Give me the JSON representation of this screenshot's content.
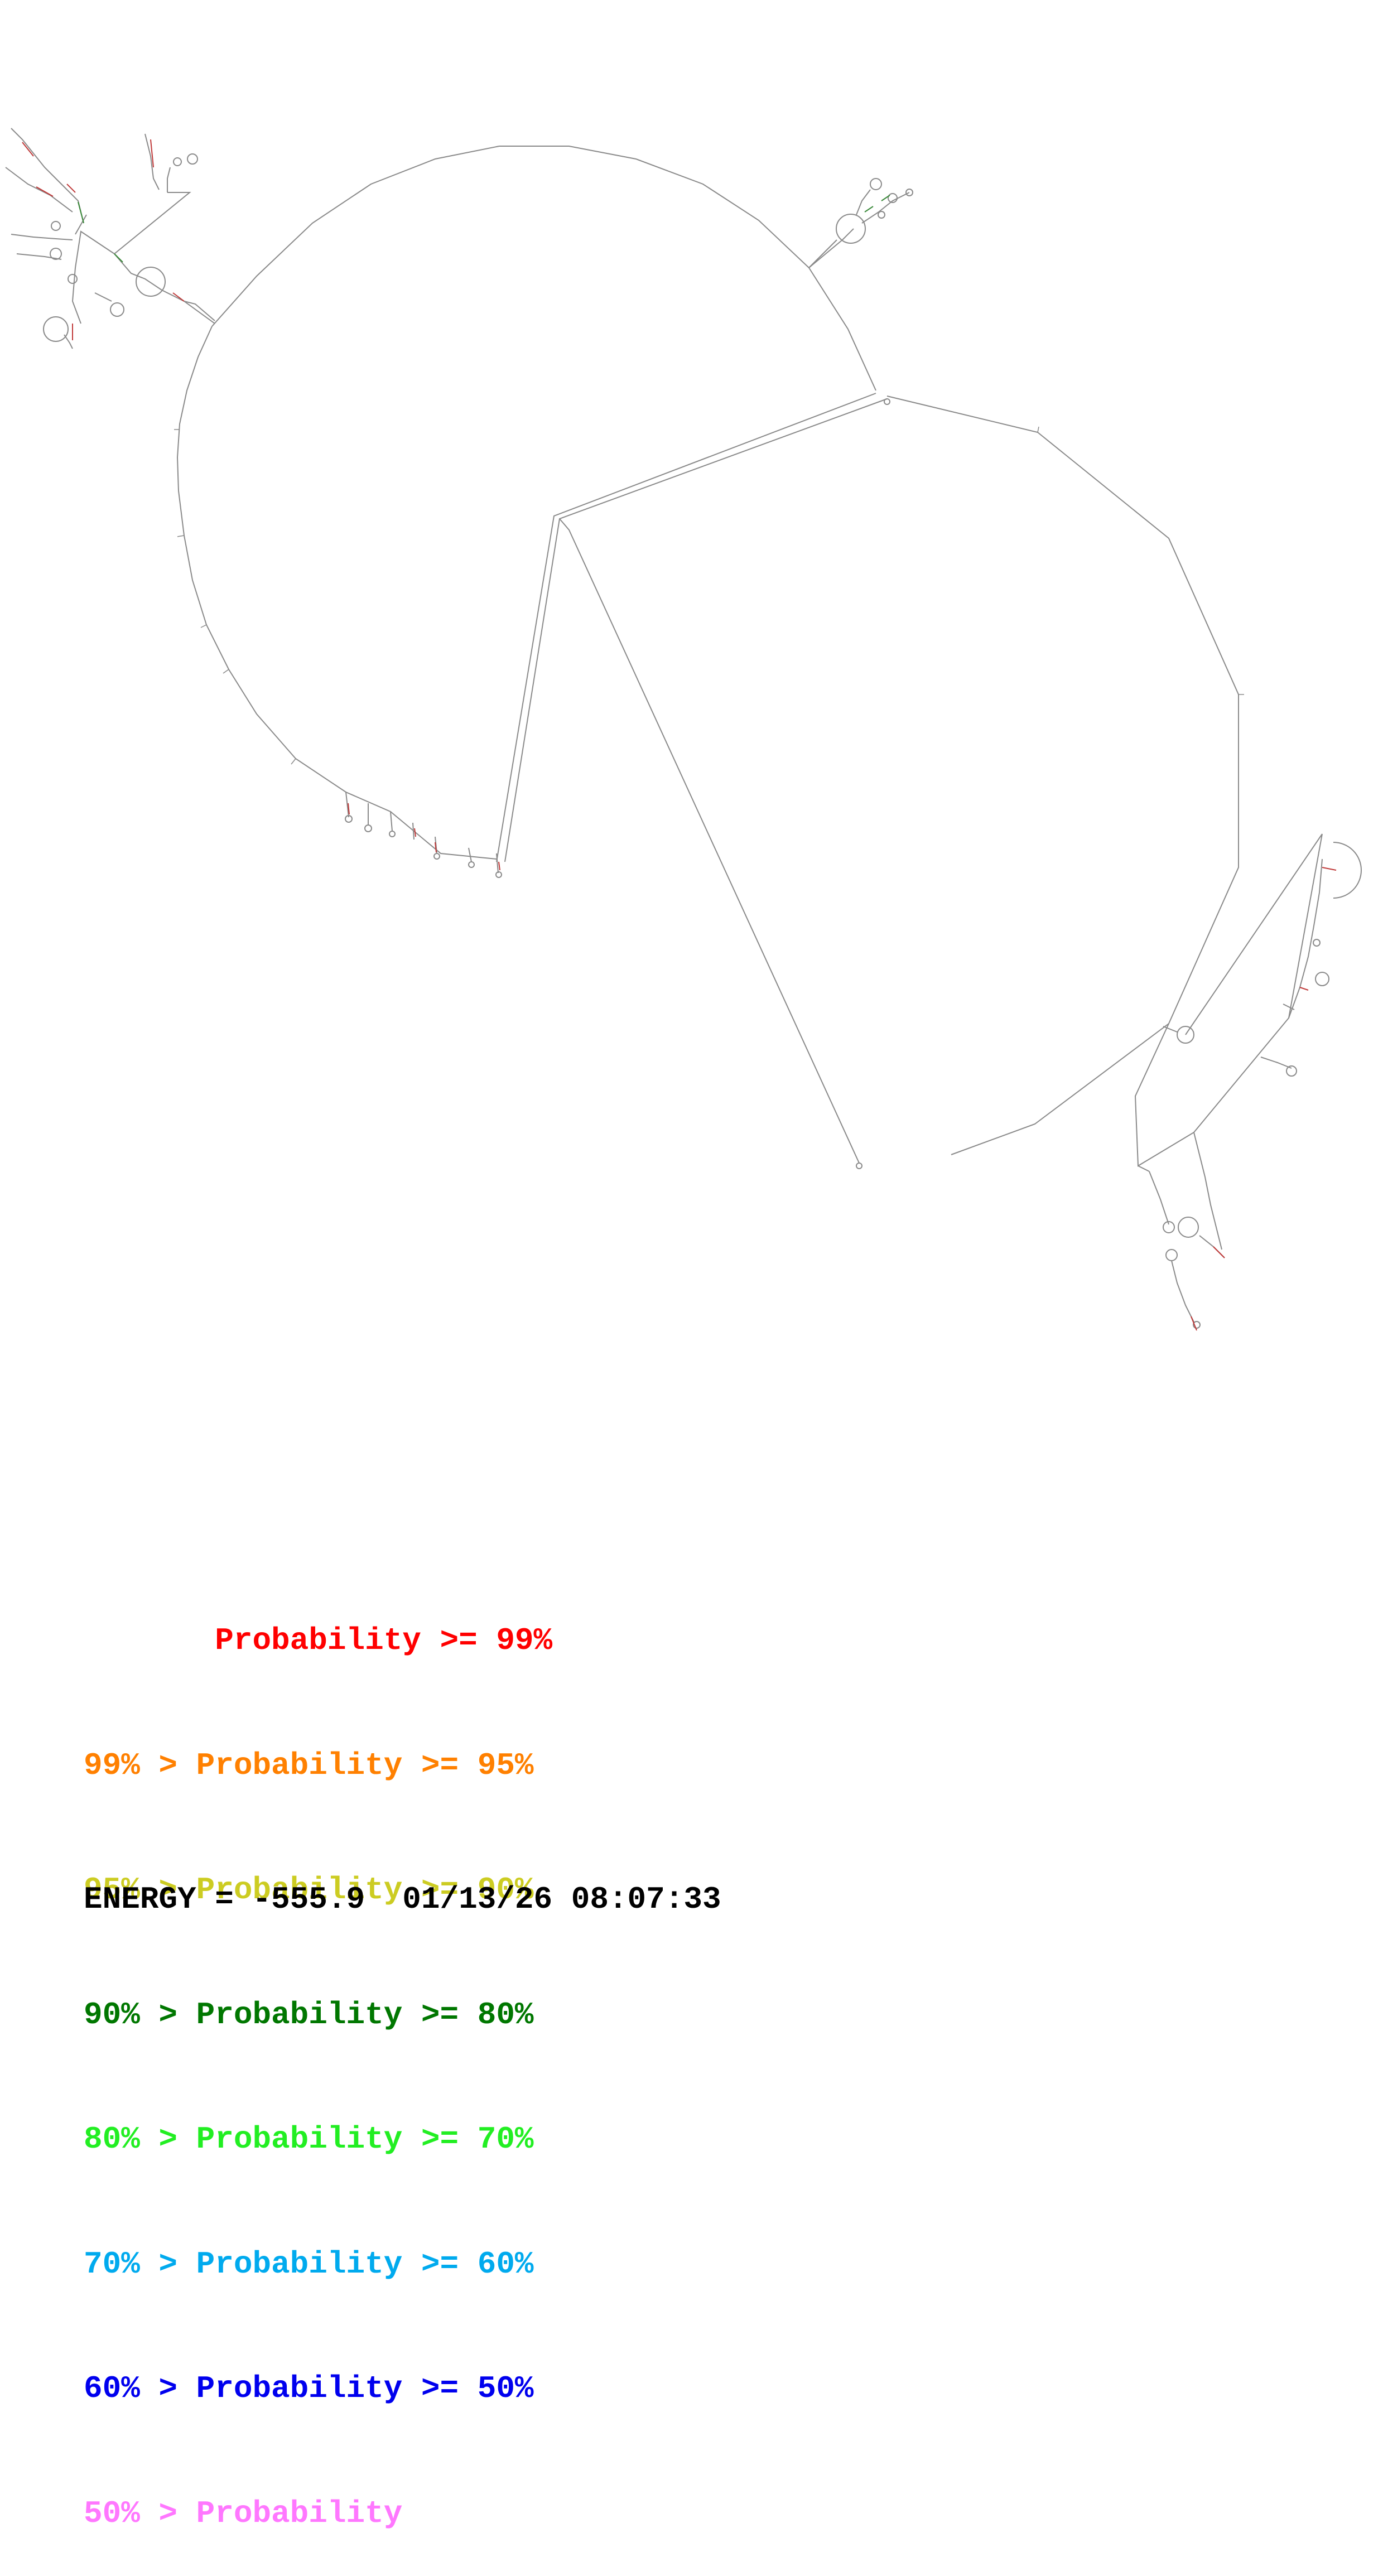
{
  "legend": {
    "rows": [
      {
        "text": "       Probability >= 99%",
        "color": "#ff0000"
      },
      {
        "text": "99% > Probability >= 95%",
        "color": "#ff8000"
      },
      {
        "text": "95% > Probability >= 90%",
        "color": "#cccc22"
      },
      {
        "text": "90% > Probability >= 80%",
        "color": "#007700"
      },
      {
        "text": "80% > Probability >= 70%",
        "color": "#22ee22"
      },
      {
        "text": "70% > Probability >= 60%",
        "color": "#00aaee"
      },
      {
        "text": "60% > Probability >= 50%",
        "color": "#0000ee"
      },
      {
        "text": "50% > Probability",
        "color": "#ff77ff"
      }
    ]
  },
  "footer": {
    "energy_text": "ENERGY = -555.9  01/13/26 08:07:33"
  },
  "colors": {
    "backbone": "#8a8a8a",
    "pair_high": "#c03a3a",
    "pair_mid": "#3a8a3a",
    "background": "#ffffff"
  }
}
